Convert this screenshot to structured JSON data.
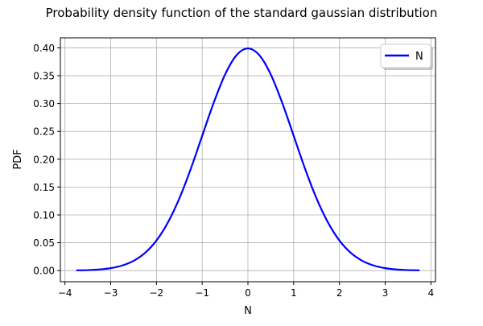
{
  "chart_data": {
    "type": "line",
    "title": "Probability density function of the standard gaussian distribution",
    "xlabel": "N",
    "ylabel": "PDF",
    "xlim": [
      -4.1,
      4.1
    ],
    "ylim": [
      -0.02,
      0.418
    ],
    "x_ticks": [
      -4,
      -3,
      -2,
      -1,
      0,
      1,
      2,
      3,
      4
    ],
    "x_tick_labels": [
      "−4",
      "−3",
      "−2",
      "−1",
      "0",
      "1",
      "2",
      "3",
      "4"
    ],
    "y_ticks": [
      0.0,
      0.05,
      0.1,
      0.15,
      0.2,
      0.25,
      0.3,
      0.35,
      0.4
    ],
    "y_tick_labels": [
      "0.00",
      "0.05",
      "0.10",
      "0.15",
      "0.20",
      "0.25",
      "0.30",
      "0.35",
      "0.40"
    ],
    "grid": true,
    "legend_position": "top-right",
    "series": [
      {
        "name": "N",
        "color": "#0000ff",
        "x": [
          -3.75,
          -3.5,
          -3.25,
          -3.0,
          -2.75,
          -2.5,
          -2.25,
          -2.0,
          -1.75,
          -1.5,
          -1.25,
          -1.0,
          -0.75,
          -0.5,
          -0.25,
          0.0,
          0.25,
          0.5,
          0.75,
          1.0,
          1.25,
          1.5,
          1.75,
          2.0,
          2.25,
          2.5,
          2.75,
          3.0,
          3.25,
          3.5,
          3.75
        ],
        "y": [
          0.0004,
          0.0009,
          0.002,
          0.0044,
          0.0091,
          0.0175,
          0.0317,
          0.054,
          0.0863,
          0.1295,
          0.1826,
          0.242,
          0.3011,
          0.3521,
          0.3867,
          0.3989,
          0.3867,
          0.3521,
          0.3011,
          0.242,
          0.1826,
          0.1295,
          0.0863,
          0.054,
          0.0317,
          0.0175,
          0.0091,
          0.0044,
          0.002,
          0.0009,
          0.0004
        ]
      }
    ]
  }
}
